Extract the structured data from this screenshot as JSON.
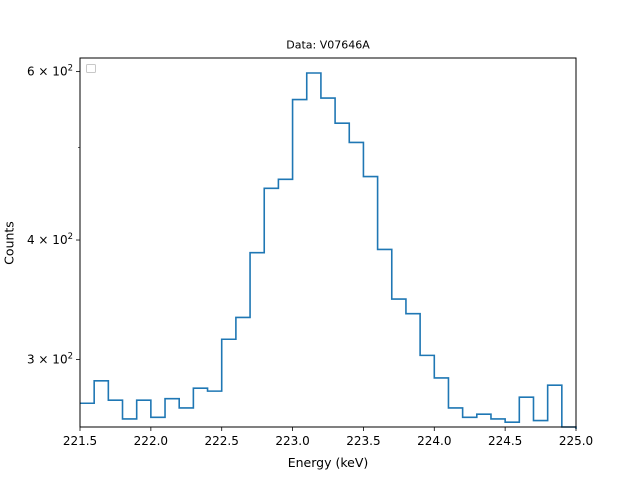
{
  "chart_data": {
    "type": "line",
    "title": "Data: V07646A",
    "xlabel": "Energy (keV)",
    "ylabel": "Counts",
    "xlim": [
      221.5,
      225.0
    ],
    "ylim": [
      255,
      620
    ],
    "yscale": "log",
    "grid": false,
    "drawstyle": "steps-post",
    "line_color": "#1f77b4",
    "legend": {
      "placement": "top-left",
      "entries": []
    },
    "x_ticks": [
      {
        "value": 221.5,
        "label": "221.5"
      },
      {
        "value": 222.0,
        "label": "222.0"
      },
      {
        "value": 222.5,
        "label": "222.5"
      },
      {
        "value": 223.0,
        "label": "223.0"
      },
      {
        "value": 223.5,
        "label": "223.5"
      },
      {
        "value": 224.0,
        "label": "224.0"
      },
      {
        "value": 224.5,
        "label": "224.5"
      },
      {
        "value": 225.0,
        "label": "225.0"
      }
    ],
    "y_major_ticks": [
      {
        "value": 300,
        "mantissa": "3",
        "base": "10",
        "exp": "2"
      },
      {
        "value": 400,
        "mantissa": "4",
        "base": "10",
        "exp": "2"
      },
      {
        "value": 600,
        "mantissa": "6",
        "base": "10",
        "exp": "2"
      }
    ],
    "y_minor_ticks": [
      500
    ],
    "series": [
      {
        "x": [
          221.5,
          221.6,
          221.7,
          221.8,
          221.9,
          222.0,
          222.1,
          222.2,
          222.3,
          222.4,
          222.5,
          222.6,
          222.7,
          222.8,
          222.9,
          223.0,
          223.1,
          223.2,
          223.3,
          223.4,
          223.5,
          223.6,
          223.7,
          223.8,
          223.9,
          224.0,
          224.1,
          224.2,
          224.3,
          224.4,
          224.5,
          224.6,
          224.7,
          224.8,
          224.9
        ],
        "values": [
          270,
          285,
          272,
          260,
          272,
          261,
          273,
          267,
          280,
          278,
          315,
          332,
          388,
          453,
          463,
          561,
          598,
          563,
          530,
          506,
          466,
          391,
          347,
          335,
          303,
          287,
          267,
          261,
          263,
          260,
          258,
          274,
          259,
          282,
          255
        ]
      }
    ]
  }
}
